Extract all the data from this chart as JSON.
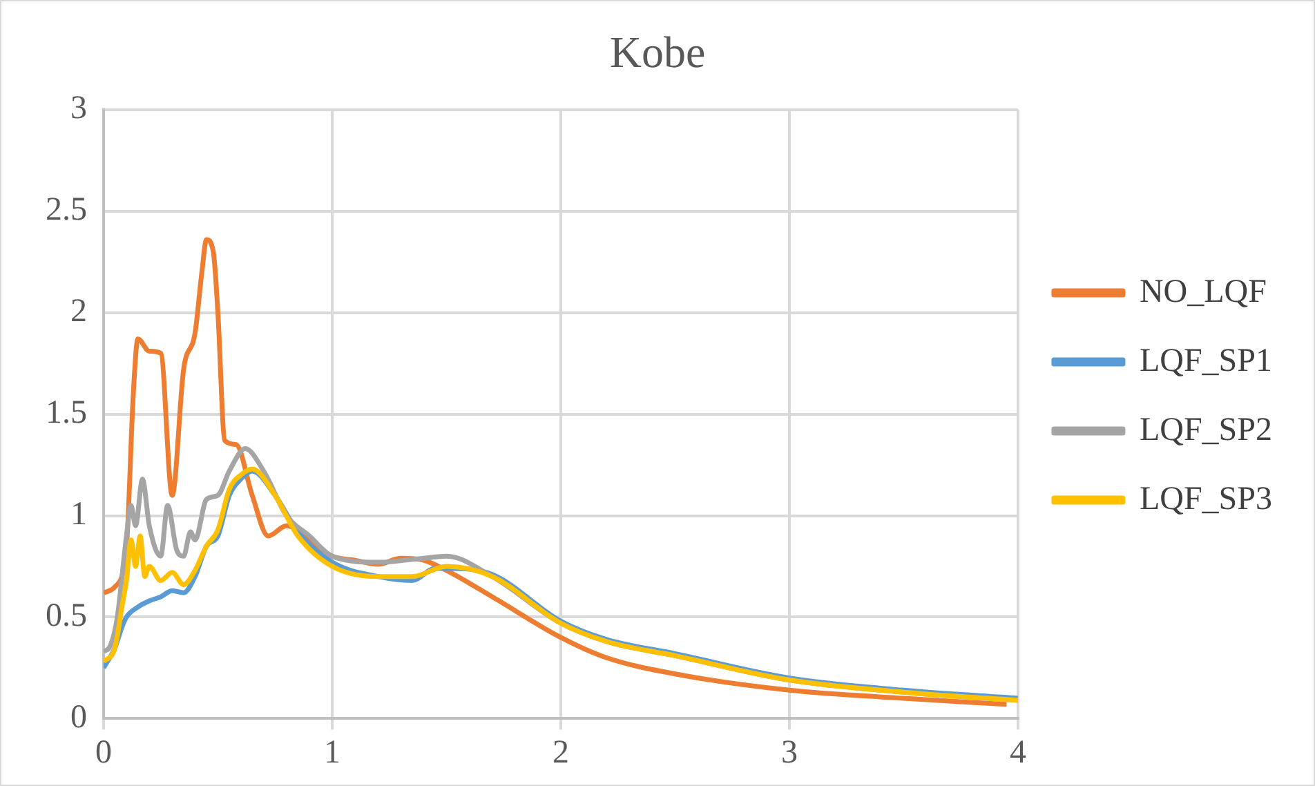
{
  "chart_data": {
    "type": "line",
    "title": "Kobe",
    "xlim": [
      0,
      4
    ],
    "xticks": [
      0,
      1,
      2,
      3,
      4
    ],
    "ylim": [
      0,
      3
    ],
    "yticks": [
      0,
      0.5,
      1,
      1.5,
      2,
      2.5,
      3
    ],
    "grid": true,
    "legend": "right",
    "marker": "none",
    "line_style": "solid",
    "series": [
      {
        "name": "NO_LQF",
        "color": "#ed7d31",
        "x": [
          0,
          0.05,
          0.1,
          0.13,
          0.15,
          0.2,
          0.25,
          0.3,
          0.35,
          0.4,
          0.43,
          0.45,
          0.48,
          0.5,
          0.53,
          0.58,
          0.65,
          0.72,
          0.8,
          0.9,
          1.0,
          1.1,
          1.2,
          1.3,
          1.4,
          1.5,
          1.7,
          2.0,
          2.2,
          2.5,
          3.0,
          3.5,
          3.95
        ],
        "values": [
          0.62,
          0.65,
          0.85,
          1.6,
          1.87,
          1.81,
          1.8,
          1.1,
          1.72,
          1.9,
          2.2,
          2.36,
          2.3,
          2.0,
          1.37,
          1.35,
          1.1,
          0.9,
          0.95,
          0.88,
          0.8,
          0.78,
          0.76,
          0.79,
          0.78,
          0.73,
          0.6,
          0.4,
          0.3,
          0.22,
          0.14,
          0.1,
          0.07
        ]
      },
      {
        "name": "LQF_SP1",
        "color": "#5b9bd5",
        "x": [
          0,
          0.05,
          0.08,
          0.1,
          0.15,
          0.2,
          0.25,
          0.3,
          0.35,
          0.4,
          0.45,
          0.5,
          0.55,
          0.6,
          0.65,
          0.75,
          0.85,
          1.0,
          1.2,
          1.35,
          1.45,
          1.5,
          1.7,
          2.0,
          2.2,
          2.5,
          3.0,
          3.5,
          4.0
        ],
        "values": [
          0.25,
          0.35,
          0.45,
          0.5,
          0.55,
          0.58,
          0.6,
          0.63,
          0.62,
          0.7,
          0.85,
          0.9,
          1.1,
          1.18,
          1.22,
          1.1,
          0.92,
          0.77,
          0.7,
          0.68,
          0.74,
          0.74,
          0.71,
          0.48,
          0.39,
          0.32,
          0.2,
          0.14,
          0.1
        ]
      },
      {
        "name": "LQF_SP2",
        "color": "#a5a5a5",
        "x": [
          0,
          0.03,
          0.06,
          0.1,
          0.12,
          0.14,
          0.17,
          0.2,
          0.25,
          0.28,
          0.32,
          0.35,
          0.38,
          0.4,
          0.45,
          0.5,
          0.55,
          0.62,
          0.7,
          0.8,
          0.9,
          1.0,
          1.2,
          1.4,
          1.5,
          1.7,
          2.0,
          2.2,
          2.5,
          3.0,
          3.5,
          4.0
        ],
        "values": [
          0.33,
          0.36,
          0.5,
          0.9,
          1.05,
          0.95,
          1.18,
          0.95,
          0.8,
          1.05,
          0.83,
          0.8,
          0.92,
          0.88,
          1.08,
          1.1,
          1.22,
          1.33,
          1.22,
          1.0,
          0.9,
          0.8,
          0.77,
          0.79,
          0.8,
          0.7,
          0.47,
          0.38,
          0.31,
          0.19,
          0.13,
          0.09
        ]
      },
      {
        "name": "LQF_SP3",
        "color": "#ffc000",
        "x": [
          0,
          0.05,
          0.08,
          0.1,
          0.12,
          0.14,
          0.16,
          0.18,
          0.2,
          0.25,
          0.3,
          0.35,
          0.4,
          0.45,
          0.5,
          0.55,
          0.6,
          0.65,
          0.75,
          0.85,
          1.0,
          1.2,
          1.35,
          1.5,
          1.7,
          2.0,
          2.2,
          2.5,
          3.0,
          3.5,
          4.0
        ],
        "values": [
          0.28,
          0.35,
          0.55,
          0.68,
          0.88,
          0.75,
          0.9,
          0.7,
          0.75,
          0.68,
          0.72,
          0.66,
          0.73,
          0.85,
          0.93,
          1.13,
          1.2,
          1.23,
          1.1,
          0.9,
          0.75,
          0.7,
          0.7,
          0.75,
          0.7,
          0.47,
          0.38,
          0.31,
          0.19,
          0.13,
          0.09
        ]
      }
    ]
  }
}
